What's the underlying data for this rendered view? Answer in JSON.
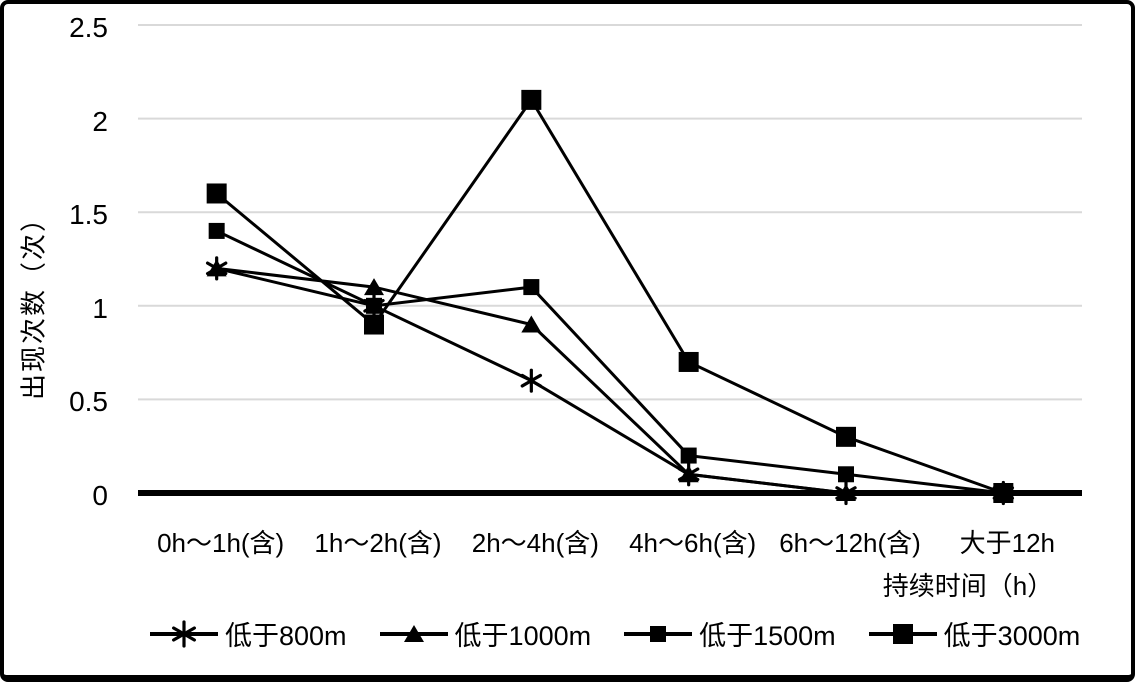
{
  "chart_data": {
    "type": "line",
    "title": "",
    "ylabel": "出现次数（次）",
    "xlabel": "持续时间（h）",
    "categories": [
      "0h～1h(含)",
      "1h～2h(含)",
      "2h～4h(含)",
      "4h～6h(含)",
      "6h～12h(含)",
      "大于12h"
    ],
    "series": [
      {
        "name": "低于800m",
        "marker": "asterisk",
        "values": [
          1.2,
          1.0,
          0.6,
          0.1,
          0,
          0
        ]
      },
      {
        "name": "低于1000m",
        "marker": "triangle",
        "values": [
          1.2,
          1.1,
          0.9,
          0.1,
          0,
          0
        ]
      },
      {
        "name": "低于1500m",
        "marker": "square",
        "values": [
          1.4,
          1.0,
          1.1,
          0.2,
          0.1,
          0
        ]
      },
      {
        "name": "低于3000m",
        "marker": "square",
        "values": [
          1.6,
          0.9,
          2.1,
          0.7,
          0.3,
          0
        ]
      }
    ],
    "ylim": [
      0,
      2.5
    ],
    "yticks": [
      "0",
      "0.5",
      "1",
      "1.5",
      "2",
      "2.5"
    ],
    "grid": true,
    "legend_position": "bottom",
    "colors": {
      "series_line": "#000000",
      "marker": "#000000",
      "gridline": "#d9d9d9",
      "zero_axis": "#000000",
      "background": "#ffffff",
      "border": "#000000"
    }
  }
}
